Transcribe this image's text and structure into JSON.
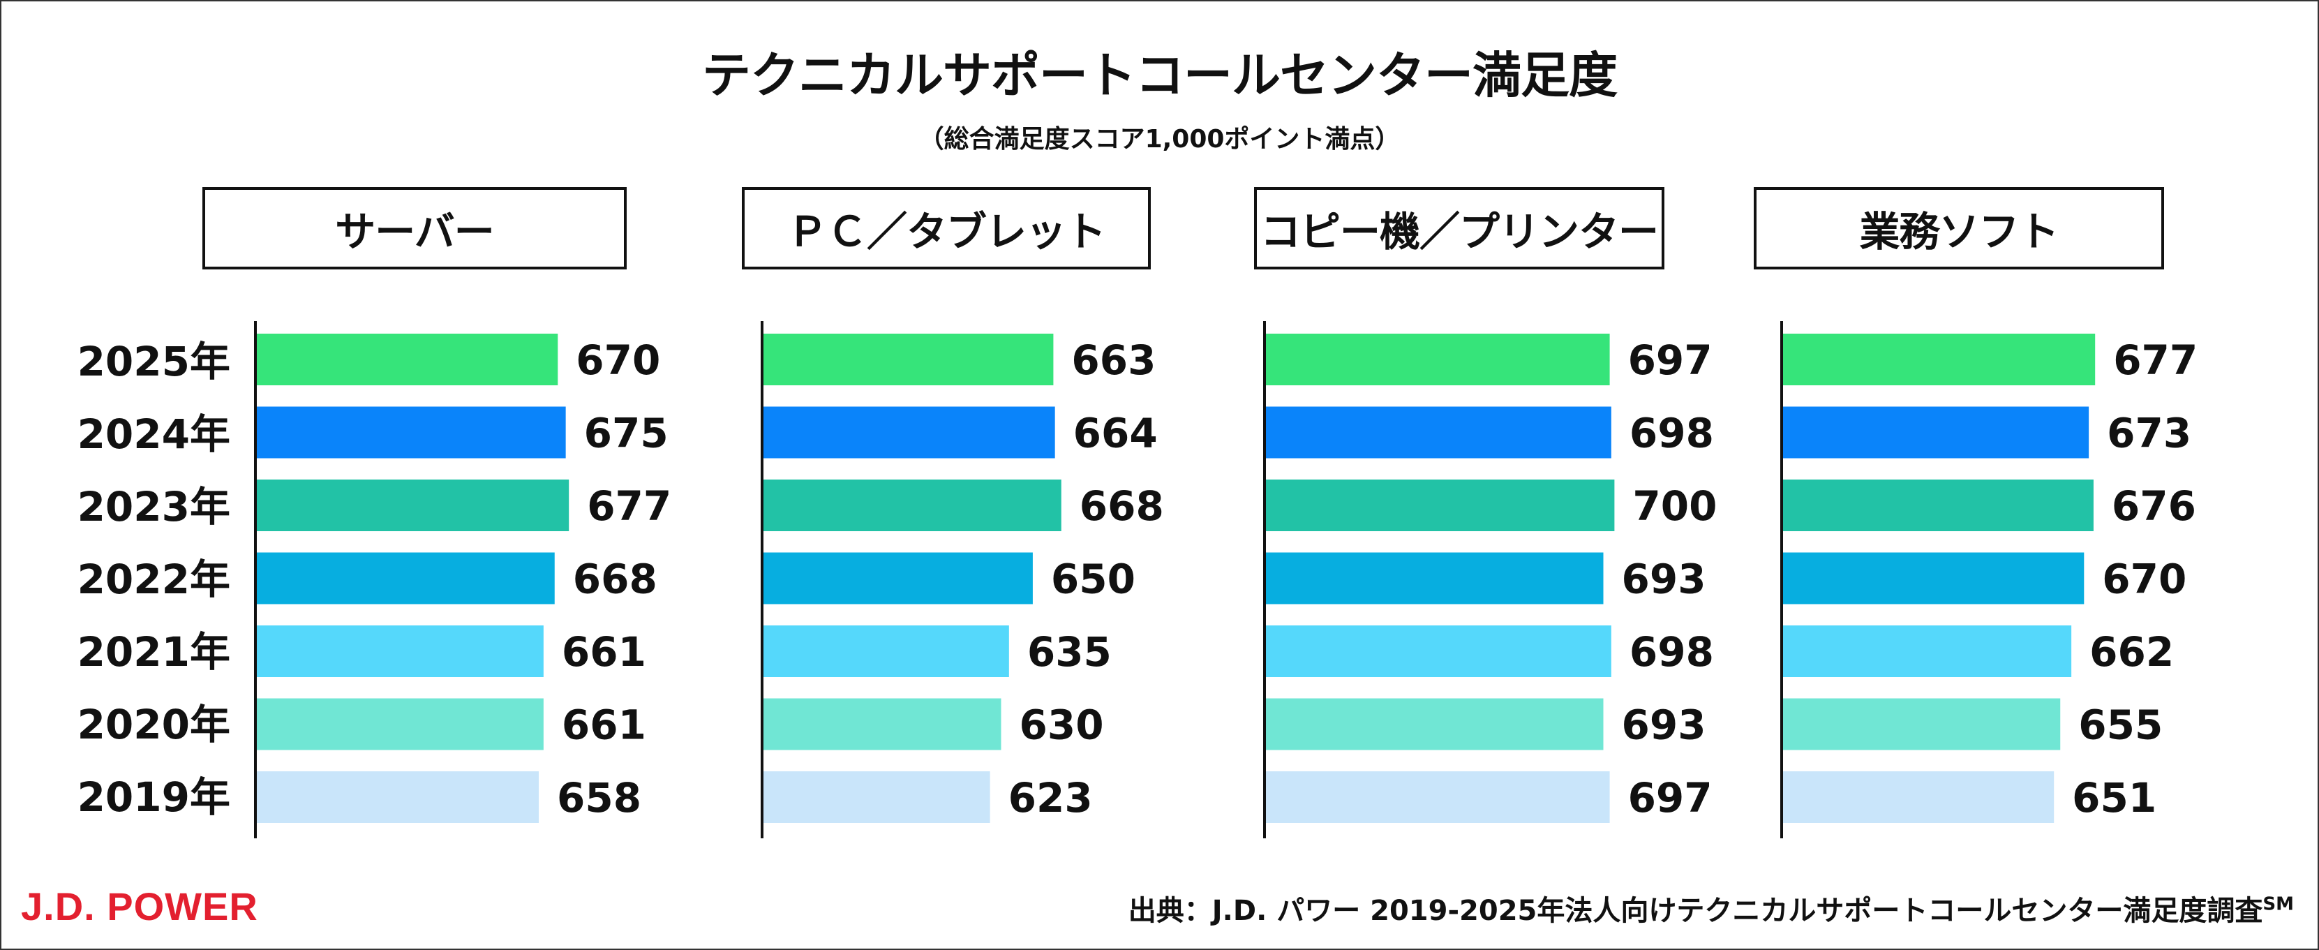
{
  "title": "テクニカルサポートコールセンター満足度",
  "subtitle": "（総合満足度スコア1,000ポイント満点）",
  "years": [
    "2025年",
    "2024年",
    "2023年",
    "2022年",
    "2021年",
    "2020年",
    "2019年"
  ],
  "series_colors": [
    "#36e47a",
    "#0a84fa",
    "#22c2a6",
    "#07aee0",
    "#55d8fb",
    "#70e6d4",
    "#c9e5fa"
  ],
  "chart_data": [
    {
      "type": "bar",
      "orientation": "horizontal",
      "title": "サーバー",
      "categories": [
        "2025年",
        "2024年",
        "2023年",
        "2022年",
        "2021年",
        "2020年",
        "2019年"
      ],
      "values": [
        670,
        675,
        677,
        668,
        661,
        661,
        658
      ]
    },
    {
      "type": "bar",
      "orientation": "horizontal",
      "title": "ＰＣ／タブレット",
      "categories": [
        "2025年",
        "2024年",
        "2023年",
        "2022年",
        "2021年",
        "2020年",
        "2019年"
      ],
      "values": [
        663,
        664,
        668,
        650,
        635,
        630,
        623
      ]
    },
    {
      "type": "bar",
      "orientation": "horizontal",
      "title": "コピー機／プリンター",
      "categories": [
        "2025年",
        "2024年",
        "2023年",
        "2022年",
        "2021年",
        "2020年",
        "2019年"
      ],
      "values": [
        697,
        698,
        700,
        693,
        698,
        693,
        697
      ]
    },
    {
      "type": "bar",
      "orientation": "horizontal",
      "title": "業務ソフト",
      "categories": [
        "2025年",
        "2024年",
        "2023年",
        "2022年",
        "2021年",
        "2020年",
        "2019年"
      ],
      "values": [
        677,
        673,
        676,
        670,
        662,
        655,
        651
      ]
    }
  ],
  "footer": {
    "logo": "J.D. POWER",
    "source": "出典：J.D. パワー 2019-2025年法人向けテクニカルサポートコールセンター満足度調査",
    "source_mark": "SM"
  }
}
